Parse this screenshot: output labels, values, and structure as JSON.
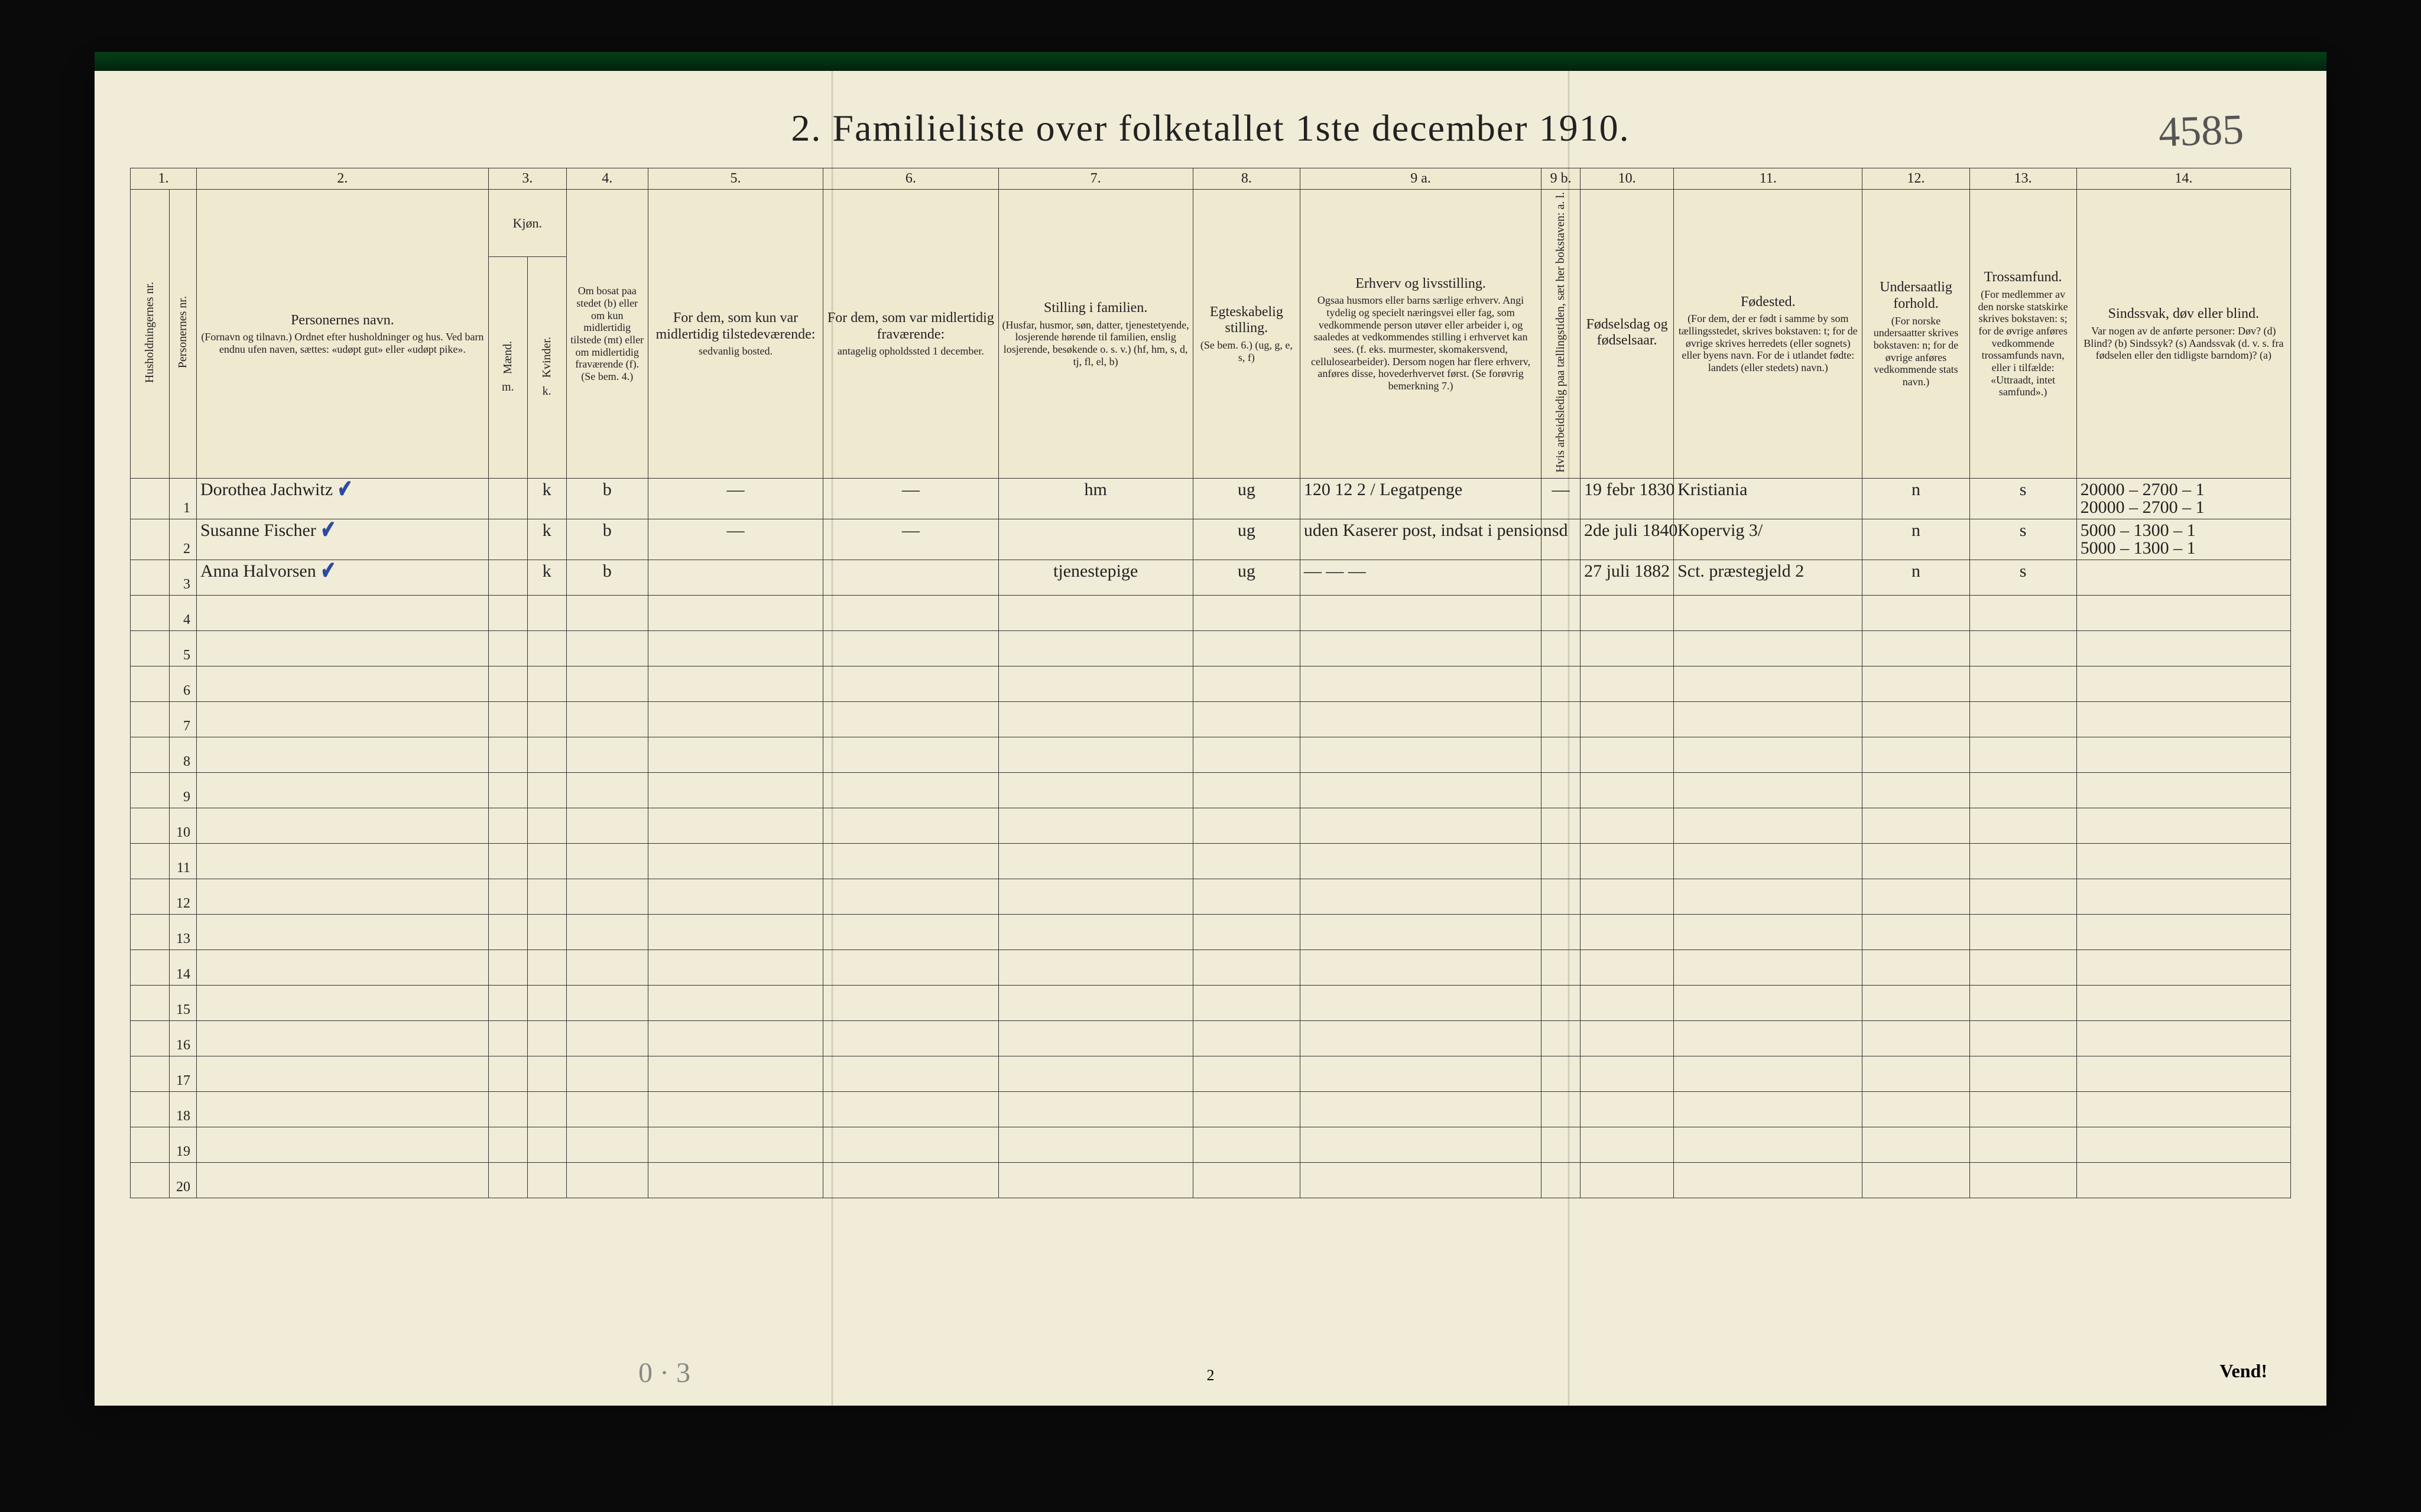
{
  "title": "2.   Familieliste over folketallet 1ste december 1910.",
  "page_annotation": "4585",
  "footer_page": "2",
  "footer_turn": "Vend!",
  "footer_pencil": "0 · 3",
  "col_numbers": [
    "1.",
    "2.",
    "3.",
    "4.",
    "5.",
    "6.",
    "7.",
    "8.",
    "9 a.",
    "9 b.",
    "10.",
    "11.",
    "12.",
    "13.",
    "14."
  ],
  "col_widths_pct": [
    2,
    1.4,
    15,
    2.0,
    2.0,
    4.2,
    9,
    9,
    10,
    5.5,
    12.4,
    2.0,
    4.8,
    9.7,
    5.5,
    5.5,
    11
  ],
  "headers": {
    "c1a": "Husholdningernes nr.",
    "c1b": "Personernes nr.",
    "c2_main": "Personernes navn.",
    "c2_sub": "(Fornavn og tilnavn.)\nOrdnet efter husholdninger og hus.\nVed barn endnu ufen naven, sættes: «udøpt gut» eller «udøpt pike».",
    "c3_main": "Kjøn.",
    "c3_m": "Mænd.",
    "c3_k": "Kvinder.",
    "c4_main": "Om bosat paa stedet (b) eller om kun midlertidig tilstede (mt) eller om midlertidig fraværende (f).",
    "c4_sub": "(Se bem. 4.)",
    "c5_main": "For dem, som kun var midlertidig tilstedeværende:",
    "c5_sub": "sedvanlig bosted.",
    "c6_main": "For dem, som var midlertidig fraværende:",
    "c6_sub": "antagelig opholdssted 1 december.",
    "c7_main": "Stilling i familien.",
    "c7_sub": "(Husfar, husmor, søn, datter, tjenestetyende, losjerende hørende til familien, enslig losjerende, besøkende o. s. v.)\n(hf, hm, s, d, tj, fl, el, b)",
    "c8_main": "Egteskabelig stilling.",
    "c8_sub": "(Se bem. 6.)\n(ug, g, e, s, f)",
    "c9a_main": "Erhverv og livsstilling.",
    "c9a_sub": "Ogsaa husmors eller barns særlige erhverv. Angi tydelig og specielt næringsvei eller fag, som vedkommende person utøver eller arbeider i, og saaledes at vedkommendes stilling i erhvervet kan sees. (f. eks. murmester, skomakersvend, cellulosearbeider). Dersom nogen har flere erhverv, anføres disse, hovederhvervet først.\n(Se forøvrig bemerkning 7.)",
    "c9b_main": "Hvis arbeidsledig paa tællingstiden, sæt her bokstaven: a. l.",
    "c10_main": "Fødselsdag og fødselsaar.",
    "c11_main": "Fødested.",
    "c11_sub": "(For dem, der er født i samme by som tællingsstedet, skrives bokstaven: t; for de øvrige skrives herredets (eller sognets) eller byens navn. For de i utlandet fødte: landets (eller stedets) navn.)",
    "c12_main": "Undersaatlig forhold.",
    "c12_sub": "(For norske undersaatter skrives bokstaven: n; for de øvrige anføres vedkommende stats navn.)",
    "c13_main": "Trossamfund.",
    "c13_sub": "(For medlemmer av den norske statskirke skrives bokstaven: s; for de øvrige anføres vedkommende trossamfunds navn, eller i tilfælde: «Uttraadt, intet samfund».)",
    "c14_main": "Sindssvak, døv eller blind.",
    "c14_sub": "Var nogen av de anførte personer:\nDøv? (d)\nBlind? (b)\nSindssyk? (s)\nAandssvak (d. v. s. fra fødselen eller den tidligste barndom)? (a)"
  },
  "row_numbers": [
    "1",
    "2",
    "3",
    "4",
    "5",
    "6",
    "7",
    "8",
    "9",
    "10",
    "11",
    "12",
    "13",
    "14",
    "15",
    "16",
    "17",
    "18",
    "19",
    "20"
  ],
  "rows": [
    {
      "name": "Dorothea Jachwitz",
      "check": "✔",
      "m": "",
      "k": "k",
      "res": "b",
      "c5": "—",
      "c6": "—",
      "famstill": "hm",
      "egte": "ug",
      "erhverv": "120 12 2 /   Legatpenge",
      "c9b": "—",
      "fdato": "19 febr 1830",
      "fsted": "Kristiania",
      "under": "n",
      "tros": "s",
      "c14": "20000 – 2700 – 1\n20000 – 2700 – 1"
    },
    {
      "name": "Susanne Fischer",
      "check": "✔",
      "m": "",
      "k": "k",
      "res": "b",
      "c5": "—",
      "c6": "—",
      "famstill": "",
      "egte": "ug",
      "erhverv": "uden Kaserer post, indsat i pensionsd",
      "c9b": "",
      "fdato": "2de juli 1840",
      "fsted": "Kopervig 3/",
      "under": "n",
      "tros": "s",
      "c14": "5000 – 1300 – 1\n5000 – 1300 – 1"
    },
    {
      "name": "Anna Halvorsen",
      "check": "✔",
      "m": "",
      "k": "k",
      "res": "b",
      "c5": "",
      "c6": "",
      "famstill": "tjenestepige",
      "egte": "ug",
      "erhverv": "—   —   —",
      "c9b": "",
      "fdato": "27 juli 1882",
      "fsted": "Sct. præstegjeld 2",
      "under": "n",
      "tros": "s",
      "c14": ""
    }
  ],
  "colors": {
    "paper": "#f1ecd7",
    "ink": "#222222",
    "hand": "#2a2518",
    "blue": "#2b4aa0",
    "pencil": "#888888",
    "bg": "#0a0a0a"
  },
  "typography": {
    "title_pt": 64,
    "header_pt": 22,
    "header_main_pt": 24,
    "header_sub_pt": 18,
    "body_pt": 30,
    "hand_pt": 40,
    "font_print": "Times New Roman",
    "font_hand": "Brush Script MT"
  }
}
